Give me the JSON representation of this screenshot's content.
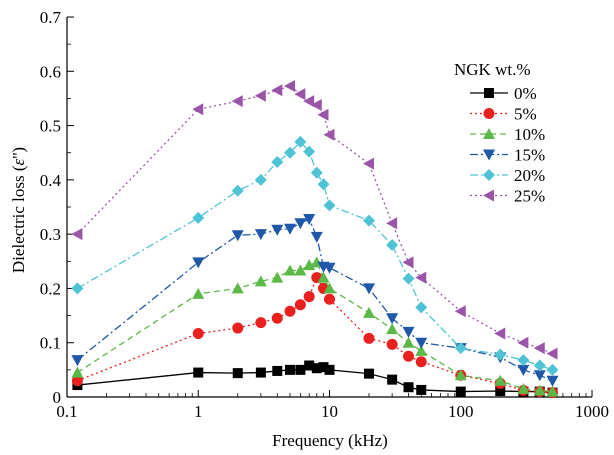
{
  "chart_data": {
    "type": "line",
    "xlabel": "Frequency (kHz)",
    "ylabel_prefix": "Dielectric loss (",
    "ylabel_symbol": "ε",
    "ylabel_prime": "''",
    "ylabel_suffix": ")",
    "x_scale": "log",
    "xlim": [
      0.1,
      1000
    ],
    "ylim": [
      0,
      0.7
    ],
    "x_ticks": [
      0.1,
      1,
      10,
      100,
      1000
    ],
    "x_tick_labels": [
      "0.1",
      "1",
      "10",
      "100",
      "1000"
    ],
    "y_ticks": [
      0,
      0.1,
      0.2,
      0.3,
      0.4,
      0.5,
      0.6,
      0.7
    ],
    "y_tick_labels": [
      "0",
      "0.1",
      "0.2",
      "0.3",
      "0.4",
      "0.5",
      "0.6",
      "0.7"
    ],
    "grid": false,
    "legend": {
      "title": "NGK wt.%",
      "placement": "right"
    },
    "series": [
      {
        "name": "0%",
        "color": "#000000",
        "marker": "square",
        "dash": "solid",
        "x": [
          0.12,
          1,
          2,
          3,
          4,
          5,
          6,
          7,
          8,
          9,
          10,
          20,
          30,
          40,
          50,
          100,
          200,
          300,
          400,
          500
        ],
        "y": [
          0.022,
          0.045,
          0.044,
          0.045,
          0.048,
          0.05,
          0.05,
          0.058,
          0.053,
          0.055,
          0.05,
          0.043,
          0.032,
          0.018,
          0.013,
          0.01,
          0.011,
          0.01,
          0.01,
          0.008
        ]
      },
      {
        "name": "5%",
        "color": "#e8201e",
        "marker": "circle",
        "dash": "dotted",
        "x": [
          0.12,
          1,
          2,
          3,
          4,
          5,
          6,
          7,
          8,
          9,
          10,
          20,
          30,
          40,
          50,
          100,
          200,
          300,
          400,
          500
        ],
        "y": [
          0.03,
          0.117,
          0.127,
          0.137,
          0.145,
          0.158,
          0.17,
          0.185,
          0.22,
          0.2,
          0.18,
          0.108,
          0.097,
          0.075,
          0.065,
          0.04,
          0.025,
          0.012,
          0.01,
          0.008
        ]
      },
      {
        "name": "10%",
        "color": "#5cb847",
        "marker": "triangle-up",
        "dash": "dashed",
        "x": [
          0.12,
          1,
          2,
          3,
          4,
          5,
          6,
          7,
          8,
          9,
          10,
          20,
          30,
          40,
          50,
          100,
          200,
          300,
          400,
          500
        ],
        "y": [
          0.045,
          0.19,
          0.2,
          0.213,
          0.22,
          0.233,
          0.233,
          0.243,
          0.248,
          0.22,
          0.2,
          0.155,
          0.125,
          0.1,
          0.085,
          0.04,
          0.03,
          0.015,
          0.012,
          0.01
        ]
      },
      {
        "name": "15%",
        "color": "#1f58a8",
        "marker": "triangle-down",
        "dash": "dashdot",
        "x": [
          0.12,
          1,
          2,
          3,
          4,
          5,
          6,
          7,
          8,
          9,
          10,
          20,
          30,
          40,
          50,
          100,
          200,
          300,
          400,
          500
        ],
        "y": [
          0.068,
          0.248,
          0.298,
          0.3,
          0.308,
          0.31,
          0.32,
          0.328,
          0.295,
          0.24,
          0.238,
          0.2,
          0.145,
          0.12,
          0.1,
          0.09,
          0.073,
          0.05,
          0.04,
          0.03
        ]
      },
      {
        "name": "20%",
        "color": "#4fc3d6",
        "marker": "diamond",
        "dash": "dashdot",
        "x": [
          0.12,
          1,
          2,
          3,
          4,
          5,
          6,
          7,
          8,
          9,
          10,
          20,
          30,
          40,
          50,
          100,
          200,
          300,
          400,
          500
        ],
        "y": [
          0.2,
          0.33,
          0.38,
          0.4,
          0.433,
          0.45,
          0.47,
          0.452,
          0.413,
          0.392,
          0.353,
          0.325,
          0.28,
          0.218,
          0.165,
          0.09,
          0.078,
          0.068,
          0.058,
          0.05
        ]
      },
      {
        "name": "25%",
        "color": "#9b55a8",
        "marker": "triangle-left",
        "dash": "dotted",
        "x": [
          0.12,
          1,
          2,
          3,
          4,
          5,
          6,
          7,
          8,
          9,
          10,
          20,
          30,
          40,
          50,
          100,
          200,
          300,
          400,
          500
        ],
        "y": [
          0.3,
          0.53,
          0.545,
          0.555,
          0.565,
          0.573,
          0.558,
          0.545,
          0.538,
          0.52,
          0.483,
          0.43,
          0.32,
          0.248,
          0.22,
          0.158,
          0.117,
          0.1,
          0.09,
          0.08
        ]
      }
    ]
  }
}
